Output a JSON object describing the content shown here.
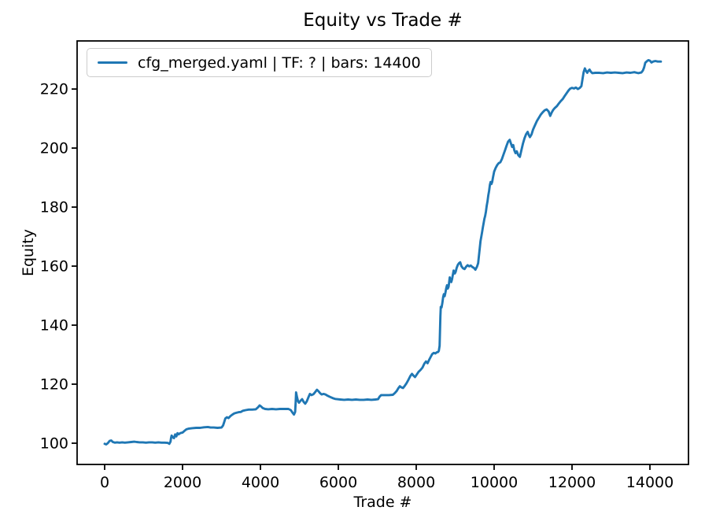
{
  "chart_data": {
    "type": "line",
    "title": "Equity vs Trade #",
    "xlabel": "Trade #",
    "ylabel": "Equity",
    "grid": false,
    "legend_position": "upper left",
    "xlim": [
      -707,
      14990
    ],
    "ylim": [
      92.8,
      236.3
    ],
    "xticks": [
      0,
      2000,
      4000,
      6000,
      8000,
      10000,
      12000,
      14000
    ],
    "yticks": [
      100,
      120,
      140,
      160,
      180,
      200,
      220
    ],
    "colors": {
      "line": "#1f77b4",
      "axis": "#000000",
      "legend_border": "#cccccc",
      "background": "#ffffff"
    },
    "series": [
      {
        "name": "cfg_merged.yaml | TF: ? | bars: 14400",
        "color": "#1f77b4",
        "points": [
          [
            0,
            99.8
          ],
          [
            40,
            99.6
          ],
          [
            80,
            100.0
          ],
          [
            130,
            100.8
          ],
          [
            170,
            100.9
          ],
          [
            210,
            100.4
          ],
          [
            260,
            100.2
          ],
          [
            320,
            100.3
          ],
          [
            380,
            100.2
          ],
          [
            450,
            100.3
          ],
          [
            520,
            100.2
          ],
          [
            600,
            100.3
          ],
          [
            680,
            100.4
          ],
          [
            760,
            100.5
          ],
          [
            820,
            100.4
          ],
          [
            900,
            100.3
          ],
          [
            980,
            100.3
          ],
          [
            1060,
            100.2
          ],
          [
            1140,
            100.3
          ],
          [
            1220,
            100.3
          ],
          [
            1300,
            100.2
          ],
          [
            1380,
            100.3
          ],
          [
            1460,
            100.2
          ],
          [
            1540,
            100.2
          ],
          [
            1620,
            100.1
          ],
          [
            1660,
            99.8
          ],
          [
            1690,
            100.5
          ],
          [
            1705,
            101.8
          ],
          [
            1720,
            102.6
          ],
          [
            1750,
            102.0
          ],
          [
            1780,
            101.7
          ],
          [
            1810,
            103.0
          ],
          [
            1840,
            102.3
          ],
          [
            1870,
            103.4
          ],
          [
            1900,
            103.0
          ],
          [
            1930,
            103.3
          ],
          [
            1960,
            103.5
          ],
          [
            2000,
            103.6
          ],
          [
            2050,
            104.2
          ],
          [
            2100,
            104.7
          ],
          [
            2150,
            104.9
          ],
          [
            2250,
            105.1
          ],
          [
            2350,
            105.2
          ],
          [
            2450,
            105.2
          ],
          [
            2550,
            105.4
          ],
          [
            2650,
            105.5
          ],
          [
            2720,
            105.3
          ],
          [
            2800,
            105.3
          ],
          [
            2900,
            105.2
          ],
          [
            3000,
            105.3
          ],
          [
            3040,
            106.0
          ],
          [
            3070,
            107.2
          ],
          [
            3100,
            108.4
          ],
          [
            3140,
            108.8
          ],
          [
            3180,
            108.5
          ],
          [
            3230,
            109.2
          ],
          [
            3280,
            109.7
          ],
          [
            3330,
            110.1
          ],
          [
            3380,
            110.3
          ],
          [
            3440,
            110.5
          ],
          [
            3500,
            110.6
          ],
          [
            3550,
            111.0
          ],
          [
            3620,
            111.2
          ],
          [
            3700,
            111.4
          ],
          [
            3790,
            111.4
          ],
          [
            3880,
            111.5
          ],
          [
            3940,
            112.2
          ],
          [
            3980,
            112.8
          ],
          [
            4020,
            112.4
          ],
          [
            4060,
            111.9
          ],
          [
            4120,
            111.6
          ],
          [
            4200,
            111.5
          ],
          [
            4300,
            111.6
          ],
          [
            4400,
            111.5
          ],
          [
            4500,
            111.6
          ],
          [
            4620,
            111.6
          ],
          [
            4720,
            111.6
          ],
          [
            4780,
            111.2
          ],
          [
            4820,
            110.4
          ],
          [
            4860,
            109.7
          ],
          [
            4890,
            110.6
          ],
          [
            4905,
            114.0
          ],
          [
            4915,
            117.2
          ],
          [
            4940,
            115.6
          ],
          [
            4965,
            114.2
          ],
          [
            4990,
            113.7
          ],
          [
            5030,
            114.4
          ],
          [
            5070,
            114.9
          ],
          [
            5110,
            114.0
          ],
          [
            5150,
            113.4
          ],
          [
            5190,
            114.2
          ],
          [
            5230,
            115.5
          ],
          [
            5270,
            116.7
          ],
          [
            5310,
            116.3
          ],
          [
            5360,
            116.6
          ],
          [
            5410,
            117.4
          ],
          [
            5450,
            118.1
          ],
          [
            5490,
            117.6
          ],
          [
            5530,
            117.0
          ],
          [
            5570,
            116.5
          ],
          [
            5620,
            116.7
          ],
          [
            5670,
            116.5
          ],
          [
            5720,
            116.1
          ],
          [
            5770,
            115.8
          ],
          [
            5820,
            115.5
          ],
          [
            5870,
            115.2
          ],
          [
            5920,
            115.0
          ],
          [
            5970,
            114.9
          ],
          [
            6050,
            114.8
          ],
          [
            6150,
            114.7
          ],
          [
            6250,
            114.8
          ],
          [
            6350,
            114.7
          ],
          [
            6450,
            114.8
          ],
          [
            6550,
            114.7
          ],
          [
            6650,
            114.7
          ],
          [
            6750,
            114.8
          ],
          [
            6850,
            114.7
          ],
          [
            6950,
            114.8
          ],
          [
            7020,
            114.9
          ],
          [
            7060,
            115.8
          ],
          [
            7100,
            116.3
          ],
          [
            7200,
            116.3
          ],
          [
            7300,
            116.3
          ],
          [
            7400,
            116.4
          ],
          [
            7450,
            117.0
          ],
          [
            7500,
            117.7
          ],
          [
            7540,
            118.6
          ],
          [
            7580,
            119.3
          ],
          [
            7620,
            118.9
          ],
          [
            7660,
            118.7
          ],
          [
            7700,
            119.3
          ],
          [
            7750,
            120.3
          ],
          [
            7800,
            121.5
          ],
          [
            7850,
            122.8
          ],
          [
            7890,
            123.5
          ],
          [
            7930,
            122.9
          ],
          [
            7970,
            122.4
          ],
          [
            8010,
            123.2
          ],
          [
            8060,
            124.2
          ],
          [
            8110,
            124.8
          ],
          [
            8160,
            125.6
          ],
          [
            8210,
            127.0
          ],
          [
            8250,
            127.7
          ],
          [
            8290,
            127.1
          ],
          [
            8330,
            128.2
          ],
          [
            8370,
            129.2
          ],
          [
            8410,
            130.2
          ],
          [
            8450,
            130.6
          ],
          [
            8490,
            130.4
          ],
          [
            8530,
            130.8
          ],
          [
            8560,
            130.9
          ],
          [
            8580,
            131.3
          ],
          [
            8600,
            133.0
          ],
          [
            8610,
            138.0
          ],
          [
            8620,
            143.0
          ],
          [
            8630,
            146.2
          ],
          [
            8650,
            146.0
          ],
          [
            8670,
            147.5
          ],
          [
            8690,
            149.5
          ],
          [
            8710,
            150.5
          ],
          [
            8730,
            149.8
          ],
          [
            8750,
            151.0
          ],
          [
            8770,
            152.5
          ],
          [
            8790,
            153.5
          ],
          [
            8810,
            152.4
          ],
          [
            8830,
            153.0
          ],
          [
            8860,
            156.2
          ],
          [
            8880,
            155.0
          ],
          [
            8900,
            154.6
          ],
          [
            8920,
            155.5
          ],
          [
            8940,
            157.0
          ],
          [
            8960,
            158.5
          ],
          [
            8990,
            157.5
          ],
          [
            9010,
            158.0
          ],
          [
            9040,
            159.5
          ],
          [
            9070,
            160.5
          ],
          [
            9100,
            161.0
          ],
          [
            9130,
            161.3
          ],
          [
            9160,
            160.0
          ],
          [
            9200,
            159.3
          ],
          [
            9240,
            159.0
          ],
          [
            9280,
            159.8
          ],
          [
            9320,
            160.3
          ],
          [
            9360,
            159.9
          ],
          [
            9400,
            160.2
          ],
          [
            9440,
            159.7
          ],
          [
            9480,
            159.4
          ],
          [
            9520,
            158.8
          ],
          [
            9560,
            159.8
          ],
          [
            9590,
            161.0
          ],
          [
            9610,
            163.5
          ],
          [
            9630,
            166.0
          ],
          [
            9650,
            168.5
          ],
          [
            9670,
            170.0
          ],
          [
            9690,
            171.5
          ],
          [
            9710,
            173.0
          ],
          [
            9730,
            174.5
          ],
          [
            9750,
            176.0
          ],
          [
            9770,
            177.0
          ],
          [
            9790,
            178.5
          ],
          [
            9810,
            180.5
          ],
          [
            9830,
            182.0
          ],
          [
            9850,
            184.0
          ],
          [
            9870,
            185.5
          ],
          [
            9890,
            187.5
          ],
          [
            9910,
            188.5
          ],
          [
            9930,
            187.8
          ],
          [
            9950,
            188.5
          ],
          [
            9970,
            190.0
          ],
          [
            10000,
            192.0
          ],
          [
            10040,
            193.3
          ],
          [
            10080,
            194.3
          ],
          [
            10120,
            194.9
          ],
          [
            10160,
            195.2
          ],
          [
            10200,
            196.3
          ],
          [
            10240,
            197.8
          ],
          [
            10280,
            199.3
          ],
          [
            10320,
            200.8
          ],
          [
            10360,
            202.2
          ],
          [
            10400,
            202.8
          ],
          [
            10430,
            201.6
          ],
          [
            10460,
            200.4
          ],
          [
            10490,
            201.0
          ],
          [
            10520,
            199.2
          ],
          [
            10550,
            198.3
          ],
          [
            10580,
            198.9
          ],
          [
            10620,
            197.6
          ],
          [
            10660,
            197.0
          ],
          [
            10700,
            199.2
          ],
          [
            10740,
            201.5
          ],
          [
            10780,
            203.3
          ],
          [
            10820,
            204.7
          ],
          [
            10860,
            205.5
          ],
          [
            10890,
            204.4
          ],
          [
            10920,
            203.7
          ],
          [
            10960,
            204.6
          ],
          [
            11000,
            206.3
          ],
          [
            11050,
            207.8
          ],
          [
            11100,
            209.2
          ],
          [
            11150,
            210.3
          ],
          [
            11200,
            211.4
          ],
          [
            11250,
            212.2
          ],
          [
            11300,
            212.8
          ],
          [
            11350,
            213.1
          ],
          [
            11400,
            212.4
          ],
          [
            11440,
            210.9
          ],
          [
            11480,
            212.1
          ],
          [
            11520,
            213.0
          ],
          [
            11560,
            213.6
          ],
          [
            11610,
            214.2
          ],
          [
            11660,
            215.1
          ],
          [
            11710,
            215.9
          ],
          [
            11760,
            216.6
          ],
          [
            11810,
            217.6
          ],
          [
            11860,
            218.6
          ],
          [
            11910,
            219.5
          ],
          [
            11950,
            220.1
          ],
          [
            12000,
            220.4
          ],
          [
            12050,
            220.2
          ],
          [
            12100,
            220.5
          ],
          [
            12150,
            220.0
          ],
          [
            12200,
            220.4
          ],
          [
            12240,
            221.0
          ],
          [
            12270,
            223.5
          ],
          [
            12300,
            225.8
          ],
          [
            12330,
            227.0
          ],
          [
            12360,
            226.1
          ],
          [
            12390,
            225.5
          ],
          [
            12420,
            226.2
          ],
          [
            12450,
            226.6
          ],
          [
            12480,
            225.9
          ],
          [
            12520,
            225.4
          ],
          [
            12600,
            225.5
          ],
          [
            12700,
            225.5
          ],
          [
            12800,
            225.4
          ],
          [
            12900,
            225.6
          ],
          [
            13000,
            225.5
          ],
          [
            13100,
            225.6
          ],
          [
            13200,
            225.5
          ],
          [
            13300,
            225.4
          ],
          [
            13400,
            225.6
          ],
          [
            13500,
            225.5
          ],
          [
            13600,
            225.7
          ],
          [
            13700,
            225.4
          ],
          [
            13780,
            225.6
          ],
          [
            13820,
            226.3
          ],
          [
            13850,
            227.3
          ],
          [
            13880,
            228.9
          ],
          [
            13920,
            229.4
          ],
          [
            13960,
            229.8
          ],
          [
            14000,
            229.6
          ],
          [
            14040,
            229.0
          ],
          [
            14080,
            229.3
          ],
          [
            14140,
            229.5
          ],
          [
            14200,
            229.3
          ],
          [
            14280,
            229.3
          ]
        ]
      }
    ]
  }
}
